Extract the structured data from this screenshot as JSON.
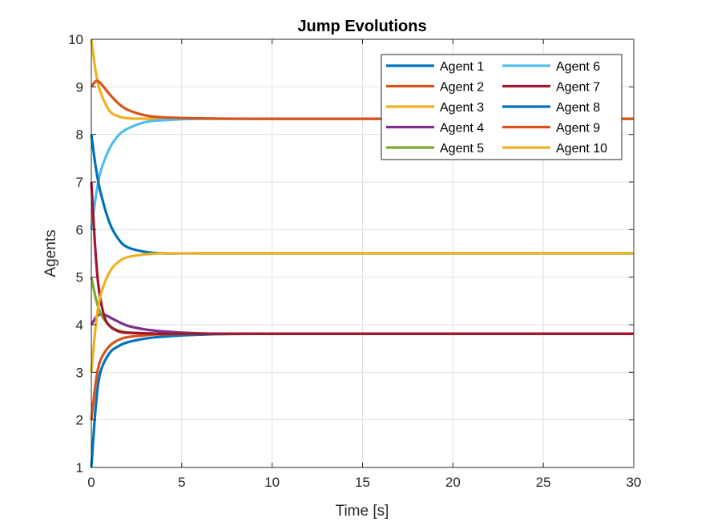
{
  "chart_data": {
    "type": "line",
    "title": "Jump Evolutions",
    "xlabel": "Time [s]",
    "ylabel": "Agents",
    "xlim": [
      0,
      30
    ],
    "ylim": [
      1,
      10
    ],
    "xticks": [
      "0",
      "5",
      "10",
      "15",
      "20",
      "25",
      "30"
    ],
    "yticks": [
      "1",
      "2",
      "3",
      "4",
      "5",
      "6",
      "7",
      "8",
      "9",
      "10"
    ],
    "grid": true,
    "legend_position": "top-right",
    "series": [
      {
        "name": "Agent 1",
        "color": "#0072BD",
        "x": [
          0,
          0.25,
          0.5,
          1,
          1.5,
          2,
          3,
          4,
          6,
          10,
          30
        ],
        "y": [
          1.0,
          2.3,
          3.0,
          3.4,
          3.55,
          3.63,
          3.71,
          3.75,
          3.79,
          3.81,
          3.81
        ]
      },
      {
        "name": "Agent 2",
        "color": "#D95319",
        "x": [
          0,
          0.25,
          0.5,
          1,
          1.5,
          2,
          3,
          4,
          6,
          10,
          30
        ],
        "y": [
          2.0,
          2.8,
          3.25,
          3.55,
          3.68,
          3.74,
          3.78,
          3.8,
          3.81,
          3.81,
          3.81
        ]
      },
      {
        "name": "Agent 3",
        "color": "#EDB120",
        "x": [
          0,
          0.25,
          0.5,
          1,
          1.5,
          2,
          3,
          4,
          6,
          10,
          30
        ],
        "y": [
          10.0,
          9.3,
          8.9,
          8.5,
          8.38,
          8.34,
          8.33,
          8.33,
          8.33,
          8.33,
          8.33
        ]
      },
      {
        "name": "Agent 4",
        "color": "#7E2F8E",
        "x": [
          0,
          0.25,
          0.5,
          0.8,
          1.2,
          2,
          3,
          4,
          6,
          10,
          30
        ],
        "y": [
          4.0,
          4.15,
          4.22,
          4.2,
          4.12,
          3.98,
          3.9,
          3.86,
          3.82,
          3.81,
          3.81
        ]
      },
      {
        "name": "Agent 5",
        "color": "#77AC30",
        "x": [
          0,
          0.25,
          0.5,
          1,
          1.5,
          2,
          3,
          4,
          6,
          10,
          30
        ],
        "y": [
          5.0,
          4.55,
          4.25,
          3.98,
          3.88,
          3.84,
          3.82,
          3.81,
          3.81,
          3.81,
          3.81
        ]
      },
      {
        "name": "Agent 6",
        "color": "#4DBEEE",
        "x": [
          0,
          0.25,
          0.5,
          1,
          1.5,
          2,
          3,
          4,
          6,
          10,
          30
        ],
        "y": [
          6.0,
          6.7,
          7.2,
          7.7,
          7.98,
          8.12,
          8.26,
          8.3,
          8.33,
          8.33,
          8.33
        ]
      },
      {
        "name": "Agent 7",
        "color": "#A2142F",
        "x": [
          0,
          0.2,
          0.4,
          0.7,
          1,
          1.5,
          2,
          3,
          4,
          6,
          30
        ],
        "y": [
          7.0,
          5.7,
          4.8,
          4.2,
          3.98,
          3.86,
          3.83,
          3.82,
          3.81,
          3.81,
          3.81
        ]
      },
      {
        "name": "Agent 8",
        "color": "#0072BD",
        "x": [
          0,
          0.25,
          0.5,
          1,
          1.5,
          2,
          3,
          4,
          6,
          10,
          30
        ],
        "y": [
          8.0,
          7.3,
          6.8,
          6.15,
          5.8,
          5.63,
          5.53,
          5.5,
          5.5,
          5.5,
          5.5
        ]
      },
      {
        "name": "Agent 9",
        "color": "#D95319",
        "x": [
          0,
          0.25,
          0.5,
          1,
          1.5,
          2,
          3,
          4,
          6,
          10,
          30
        ],
        "y": [
          9.0,
          9.12,
          9.08,
          8.85,
          8.65,
          8.52,
          8.4,
          8.36,
          8.34,
          8.33,
          8.33
        ]
      },
      {
        "name": "Agent 10",
        "color": "#EDB120",
        "x": [
          0,
          0.25,
          0.5,
          1,
          1.5,
          2,
          3,
          4,
          6,
          10,
          30
        ],
        "y": [
          3.0,
          4.0,
          4.6,
          5.1,
          5.32,
          5.42,
          5.48,
          5.5,
          5.5,
          5.5,
          5.5
        ]
      }
    ]
  }
}
